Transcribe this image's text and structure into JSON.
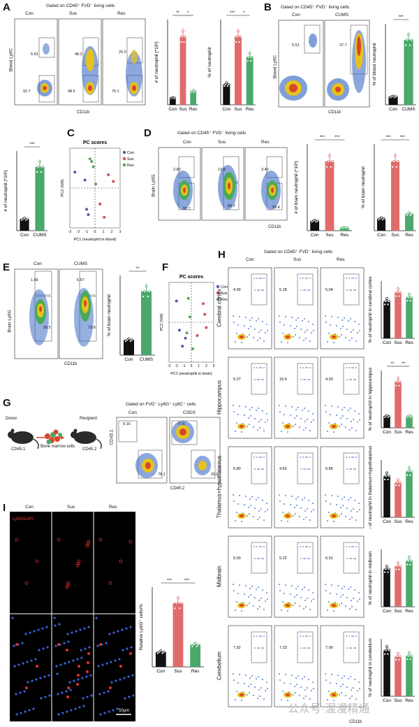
{
  "colors": {
    "con": "#111111",
    "sus": "#e06b6b",
    "res": "#4aa86a",
    "cums": "#4aa86a",
    "pc_con": "#5b55a8",
    "pc_sus": "#d45050",
    "pc_res": "#5aa05a"
  },
  "panels": {
    "A": {
      "label": "A",
      "gate": "Gated on CD45⁺ FVD⁻ living cells",
      "groups": [
        "Con",
        "Sus",
        "Res"
      ],
      "pop_upper": [
        "5.52",
        "48.2",
        "25.0"
      ],
      "pop_lower": [
        "92.7",
        "48.5",
        "75.1"
      ],
      "y_axis": "Blood Ly6C",
      "x_axis": "CD11b",
      "bar1": {
        "ylabel": "# of neutrophil (*10³)",
        "categories": [
          "Con",
          "Sus",
          "Res"
        ],
        "values": [
          1.5,
          15,
          3
        ],
        "sig": [
          "**",
          "*"
        ]
      },
      "bar2": {
        "ylabel": "% of neutrophil",
        "categories": [
          "Con",
          "Sus",
          "Res"
        ],
        "values": [
          12,
          40,
          28
        ],
        "sig": [
          "***",
          "*"
        ]
      }
    },
    "B": {
      "label": "B",
      "gate": "Gated on CD45⁺ FVD⁻ living cells",
      "groups": [
        "Con",
        "CUMS"
      ],
      "pop_upper": [
        "5.51",
        "37.7"
      ],
      "y_axis": "Blood Ly6C",
      "x_axis": "CD11b",
      "bar": {
        "ylabel": "% of blood neutrophil",
        "categories": [
          "Con",
          "CUMS"
        ],
        "values": [
          3,
          24
        ],
        "sig": [
          "***"
        ]
      }
    },
    "A2": {
      "bar": {
        "ylabel": "# of neutrophil (*10³)",
        "categories": [
          "Con",
          "CUMS"
        ],
        "values": [
          4,
          22
        ],
        "sig": [
          "***"
        ]
      }
    },
    "C": {
      "label": "C",
      "title": "PC scores",
      "xlabel": "PC1 (neutrophil in blood)",
      "ylabel": "PC2 (SIR)",
      "legend": [
        "Con",
        "Sus",
        "Res"
      ],
      "chart_data": {
        "type": "scatter",
        "title": "PC scores",
        "xlabel": "PC1 (neutrophil in blood)",
        "ylabel": "PC2 (SIR)",
        "xlim": [
          -3,
          3
        ],
        "ylim": [
          -3,
          3
        ],
        "series": [
          {
            "name": "Con",
            "x": [
              -2.4,
              -1.2,
              -1.0,
              -0.8
            ],
            "y": [
              1.2,
              0.6,
              -1.6,
              -2.0
            ]
          },
          {
            "name": "Sus",
            "x": [
              1.6,
              2.2,
              0.6,
              1.1
            ],
            "y": [
              1.0,
              0.5,
              -1.2,
              -2.2
            ]
          },
          {
            "name": "Res",
            "x": [
              -0.6,
              -0.2,
              0.1,
              -0.4
            ],
            "y": [
              2.2,
              1.6,
              0.3,
              2.0
            ]
          }
        ]
      }
    },
    "D": {
      "label": "D",
      "gate": "Gated on CD45⁺ FVD⁻ living cells",
      "groups": [
        "Con",
        "Sus",
        "Res"
      ],
      "pop_upper": [
        "2.80",
        "13.9",
        "3.40"
      ],
      "pop_lower": [
        "93.7",
        "83.2",
        "93.4"
      ],
      "y_axis": "Brain Ly6G",
      "x_axis": "CD11b",
      "bar1": {
        "ylabel": "# of brain neutrophil (*10³)",
        "categories": [
          "Con",
          "Sus",
          "Res"
        ],
        "values": [
          5,
          36,
          1.5
        ],
        "sig": [
          "***",
          "***"
        ]
      },
      "bar2": {
        "ylabel": "% of brain neutrophil",
        "categories": [
          "Con",
          "Sus",
          "Res"
        ],
        "values": [
          2.5,
          14.5,
          3.5
        ],
        "sig": [
          "***",
          "***"
        ]
      }
    },
    "E": {
      "label": "E",
      "groups": [
        "Con",
        "CUMS"
      ],
      "pop_upper": [
        "1.66",
        "6.57"
      ],
      "pop_lower": [
        "95.5",
        "73.8"
      ],
      "y_axis": "Brain Ly6G",
      "x_axis": "CD11b",
      "bar": {
        "ylabel": "% of brain neutrophil",
        "categories": [
          "Con",
          "CUMS"
        ],
        "values": [
          1.0,
          4.2
        ],
        "sig": [
          "**"
        ]
      }
    },
    "F": {
      "label": "F",
      "title": "PC scores",
      "xlabel": "PC1 (neutrophil in brain)",
      "ylabel": "PC2 (SIR)",
      "legend": [
        "Con",
        "Sus",
        "Res"
      ],
      "chart_data": {
        "type": "scatter",
        "title": "PC scores",
        "xlabel": "PC1 (neutrophil in brain)",
        "ylabel": "PC2 (SIR)",
        "xlim": [
          -3,
          3
        ],
        "ylim": [
          -3,
          3
        ],
        "series": [
          {
            "name": "Con",
            "x": [
              -2.0,
              -1.6,
              -1.2,
              -0.8
            ],
            "y": [
              1.6,
              -0.6,
              -1.8,
              -1.2
            ]
          },
          {
            "name": "Sus",
            "x": [
              1.6,
              1.8,
              2.0,
              0.8
            ],
            "y": [
              1.4,
              0.6,
              -0.4,
              -1.0
            ]
          },
          {
            "name": "Res",
            "x": [
              -0.4,
              -0.2,
              -0.6,
              0.2
            ],
            "y": [
              1.8,
              0.4,
              -0.8,
              -2.0
            ]
          }
        ]
      }
    },
    "G": {
      "label": "G",
      "gate": "Gated on FVD⁻ Ly6G⁺ Ly6C⁺ cells",
      "donor": "Donor",
      "donor_strain": "CD45.1",
      "recipient": "Recipient",
      "recipient_strain": "CD45.2",
      "cells": "Bone marrow cells",
      "groups": [
        "Con",
        "CSDS"
      ],
      "pop_upper": [
        "9.16",
        "77.6"
      ],
      "pop_lower": [
        "78.1",
        "20.6"
      ],
      "y_axis": "CD45.1",
      "x_axis": "CD45.2"
    },
    "H": {
      "label": "H",
      "gate": "Gated on CD45⁺ FVD⁻ living cells",
      "groups": [
        "Con",
        "Sus",
        "Res"
      ],
      "y_axis": "Ly6G",
      "x_axis": "CD11b",
      "regions": [
        {
          "name": "Cerebral cortex",
          "pops": [
            "4.99",
            "5.18",
            "5.04"
          ],
          "ylabel": "% of neutrophil in cerebral cortex",
          "values": [
            4.5,
            5.6,
            5.0
          ],
          "sig": []
        },
        {
          "name": "Hippocampus",
          "pops": [
            "5.27",
            "19.9",
            "4.20"
          ],
          "ylabel": "% of neutrophil in hippocampus",
          "values": [
            5,
            20,
            5
          ],
          "sig": [
            "**",
            "**"
          ]
        },
        {
          "name": "Thalamus+hypothalamus",
          "pops": [
            "5.80",
            "4.63",
            "5.86"
          ],
          "ylabel": "% of neutrophil in thalamus+hypothalamus",
          "values": [
            5.2,
            4.4,
            5.8
          ],
          "sig": []
        },
        {
          "name": "Midbrain",
          "pops": [
            "5.00",
            "5.22",
            "6.31"
          ],
          "ylabel": "% of neutrophil in midbrain",
          "values": [
            5,
            5.4,
            6.1
          ],
          "sig": []
        },
        {
          "name": "Cerebellum",
          "pops": [
            "7.52",
            "7.23",
            "7.09"
          ],
          "ylabel": "% of neutrophil in cerebellum",
          "values": [
            7.4,
            6.4,
            6.5
          ],
          "sig": []
        }
      ]
    },
    "I": {
      "label": "I",
      "groups": [
        "Con",
        "Sus",
        "Res"
      ],
      "stain": "Ly6G/DAPI",
      "scale": "50μm",
      "bar": {
        "ylabel": "Relative Ly6G⁺ cells/%",
        "categories": [
          "Con",
          "Sus",
          "Res"
        ],
        "values": [
          100,
          430,
          150
        ],
        "sig": [
          "***",
          "***"
        ]
      }
    }
  },
  "watermark": "公众号·渥漫精通"
}
